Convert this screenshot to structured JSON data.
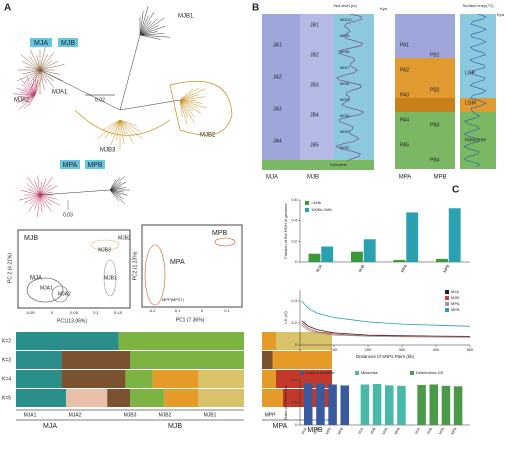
{
  "panel_a": {
    "label": "A",
    "tree_top": {
      "groups": [
        "MJA",
        "MJB"
      ],
      "clades": [
        "MJB1",
        "MJA1",
        "MJA2",
        "MJB2",
        "MJB3"
      ],
      "scale": "0.02"
    },
    "tree_mid": {
      "groups": [
        "MPA",
        "MPB"
      ],
      "scale": "0.03"
    },
    "pca_left": {
      "title": "MJB",
      "xlabel": "PC1(13.06%)",
      "ylabel": "PC 2 (4.21%)",
      "groups": [
        "MJA",
        "MJB3",
        "MJB1",
        "MJB2",
        "MJA1",
        "MJA2"
      ],
      "xticks": [
        "-0.05",
        "0",
        "0.05",
        "0.1",
        "0.15"
      ]
    },
    "pca_right": {
      "title": "MPB",
      "group": "MPA",
      "xlabel": "PC1 (7.36%)",
      "ylabel": "PC2 (1.23%)",
      "outlier": "MPP(MP07)",
      "xticks": [
        "-0.2",
        "-0.1",
        "0",
        "0.1"
      ]
    },
    "structure": {
      "k": [
        "K=2",
        "K=3",
        "K=4",
        "K=5"
      ],
      "subgroups": [
        "MJA1",
        "MJA2",
        "MJB3",
        "MJB2",
        "MJB1",
        "MPP"
      ],
      "groups": [
        "MJA",
        "MJB",
        "MPA",
        "MPB"
      ]
    }
  },
  "panel_b": {
    "label": "B",
    "left": {
      "top_label": "Sea level (m)",
      "kya": "Kya",
      "periods": [
        "JA1",
        "JA2",
        "JA3",
        "JA4",
        "JB1",
        "JB2",
        "JB3",
        "JB4",
        "JB5"
      ],
      "mis": [
        "MIS10",
        "MIS9",
        "MIS8",
        "MIS7",
        "MIS6",
        "MIS5",
        "MIS4",
        "MIS3",
        "MIS2"
      ],
      "epoch": "Holocene",
      "pops": [
        "MJA",
        "MJB"
      ]
    },
    "right": {
      "top_label": "Surface temp(°C)",
      "kya": "Kya",
      "periods": [
        "PA1",
        "PA2",
        "PA3",
        "PA4",
        "PA5",
        "PB1",
        "PB2",
        "PB3",
        "PB4"
      ],
      "bands": [
        "LGP",
        "LGM",
        "Holocene"
      ],
      "pops": [
        "MPA",
        "MPB"
      ]
    }
  },
  "panel_c": {
    "label": "C"
  },
  "chart_data": [
    {
      "type": "bar",
      "ylabel": "Fraction of the ROH in genome",
      "categories": [
        "MJA",
        "MJB",
        "MPA",
        "MPB"
      ],
      "series": [
        {
          "name": ">1Mb",
          "color": "#3a9a3a",
          "values": [
            0.08,
            0.1,
            0.02,
            0.03
          ]
        },
        {
          "name": "100Kb-1Mb",
          "color": "#2aa0b0",
          "values": [
            0.15,
            0.22,
            0.48,
            0.52
          ]
        }
      ],
      "ylim": [
        0,
        0.6
      ],
      "yticks": [
        0,
        0.2,
        0.4,
        0.6
      ]
    },
    {
      "type": "line",
      "ylabel": "LD (r2)",
      "xlabel": "Distances of SNPs Pairs (kb)",
      "x": [
        5,
        25,
        50,
        100,
        150,
        200,
        300,
        400,
        500
      ],
      "series": [
        {
          "name": "MJA",
          "color": "#222222",
          "values": [
            0.22,
            0.17,
            0.14,
            0.11,
            0.1,
            0.09,
            0.085,
            0.08,
            0.078
          ]
        },
        {
          "name": "MJB",
          "color": "#d43c3c",
          "values": [
            0.2,
            0.15,
            0.12,
            0.1,
            0.09,
            0.085,
            0.08,
            0.077,
            0.075
          ]
        },
        {
          "name": "MPA",
          "color": "#999999",
          "values": [
            0.18,
            0.13,
            0.11,
            0.09,
            0.085,
            0.08,
            0.075,
            0.072,
            0.07
          ]
        },
        {
          "name": "MPB",
          "color": "#2aa0b0",
          "values": [
            0.4,
            0.33,
            0.29,
            0.25,
            0.23,
            0.21,
            0.19,
            0.18,
            0.17
          ]
        }
      ],
      "xlim": [
        0,
        500
      ],
      "xticks": [
        0,
        100,
        200,
        300,
        400,
        500
      ],
      "ylim": [
        0,
        0.5
      ],
      "yticks": [
        0,
        0.2,
        0.4
      ]
    },
    {
      "type": "groupbar",
      "ylabel": "Ratio of 2*hom+het",
      "categories": [
        "MJA",
        "MJB",
        "MPA",
        "MPB"
      ],
      "series": [
        {
          "name": "Loss of function",
          "color": "#3a5aa0",
          "values": [
            0.93,
            0.92,
            0.9,
            0.88
          ]
        },
        {
          "name": "Missense",
          "color": "#48b8a8",
          "values": [
            0.9,
            0.91,
            0.88,
            0.87
          ]
        },
        {
          "name": "Deleterious-GS",
          "color": "#4a9a4a",
          "values": [
            0.89,
            0.9,
            0.87,
            0.86
          ]
        }
      ],
      "ylim": [
        0,
        1
      ],
      "yticks": [
        0,
        0.5,
        {
          "value": 1,
          "label": "1.0"
        }
      ]
    }
  ]
}
